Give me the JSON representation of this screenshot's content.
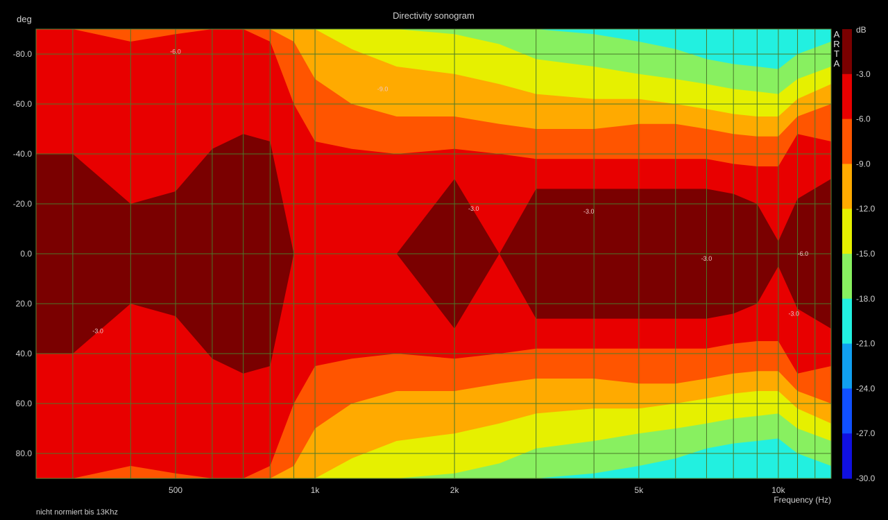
{
  "chart_data": {
    "type": "heatmap",
    "title": "Directivity sonogram",
    "ylabel": "deg",
    "xlabel": "Frequency (Hz)",
    "x_scale": "log",
    "xlim": [
      250,
      13000
    ],
    "ylim": [
      -90,
      90
    ],
    "y_ticks": [
      "-80.0",
      "-60.0",
      "-40.0",
      "-20.0",
      "0.0",
      "20.0",
      "40.0",
      "60.0",
      "80.0"
    ],
    "y_tick_values": [
      -80,
      -60,
      -40,
      -20,
      0,
      20,
      40,
      60,
      80
    ],
    "x_ticks": [
      "500",
      "1k",
      "2k",
      "5k",
      "10k"
    ],
    "x_tick_values": [
      500,
      1000,
      2000,
      5000,
      10000
    ],
    "grid": true,
    "colorbar": {
      "unit": "dB",
      "badge": [
        "A",
        "R",
        "T",
        "A"
      ],
      "levels": [
        "-3.0",
        "-6.0",
        "-9.0",
        "-12.0",
        "-15.0",
        "-18.0",
        "-21.0",
        "-24.0",
        "-27.0",
        "-30.0"
      ],
      "colors": [
        "#7a0000",
        "#e80000",
        "#ff5500",
        "#ffaa00",
        "#e6f000",
        "#88f060",
        "#22f0e0",
        "#10a0f0",
        "#1050ff",
        "#1010e0"
      ]
    },
    "contour_labels": [
      {
        "text": "-6.0",
        "freq": 500,
        "deg": -81
      },
      {
        "text": "-9.0",
        "freq": 1400,
        "deg": -66
      },
      {
        "text": "-3.0",
        "freq": 2200,
        "deg": -18
      },
      {
        "text": "-3.0",
        "freq": 3900,
        "deg": -17
      },
      {
        "text": "-3.0",
        "freq": 7000,
        "deg": 2
      },
      {
        "text": "-6.0",
        "freq": 11300,
        "deg": 0
      },
      {
        "text": "-3.0",
        "freq": 10800,
        "deg": 24
      },
      {
        "text": "-3.0",
        "freq": 340,
        "deg": 31
      }
    ],
    "beamwidth_deg": {
      "freq": [
        250,
        300,
        400,
        500,
        600,
        700,
        800,
        900,
        1000,
        1200,
        1500,
        2000,
        2500,
        3000,
        4000,
        5000,
        6000,
        7000,
        8000,
        9000,
        10000,
        11000,
        13000
      ],
      "minus3": [
        40,
        40,
        20,
        25,
        42,
        48,
        45,
        0,
        0,
        0,
        0,
        30,
        0,
        26,
        26,
        26,
        26,
        26,
        24,
        20,
        5,
        22,
        30
      ],
      "minus6": [
        90,
        90,
        85,
        88,
        90,
        90,
        85,
        60,
        45,
        42,
        40,
        42,
        40,
        38,
        38,
        38,
        38,
        38,
        36,
        35,
        35,
        48,
        45
      ],
      "minus9": [
        90,
        90,
        90,
        90,
        90,
        90,
        90,
        85,
        70,
        60,
        55,
        55,
        52,
        50,
        50,
        52,
        52,
        50,
        48,
        47,
        47,
        55,
        60
      ],
      "minus12": [
        90,
        90,
        90,
        90,
        90,
        90,
        90,
        90,
        90,
        82,
        75,
        72,
        68,
        64,
        62,
        62,
        60,
        58,
        56,
        55,
        55,
        62,
        68
      ],
      "minus15": [
        90,
        90,
        90,
        90,
        90,
        90,
        90,
        90,
        90,
        90,
        90,
        88,
        84,
        78,
        75,
        72,
        70,
        68,
        66,
        65,
        64,
        70,
        75
      ],
      "minus18": [
        90,
        90,
        90,
        90,
        90,
        90,
        90,
        90,
        90,
        90,
        90,
        90,
        90,
        90,
        88,
        85,
        82,
        78,
        76,
        75,
        74,
        80,
        85
      ]
    },
    "footnote": "nicht normiert bis 13Khz"
  }
}
